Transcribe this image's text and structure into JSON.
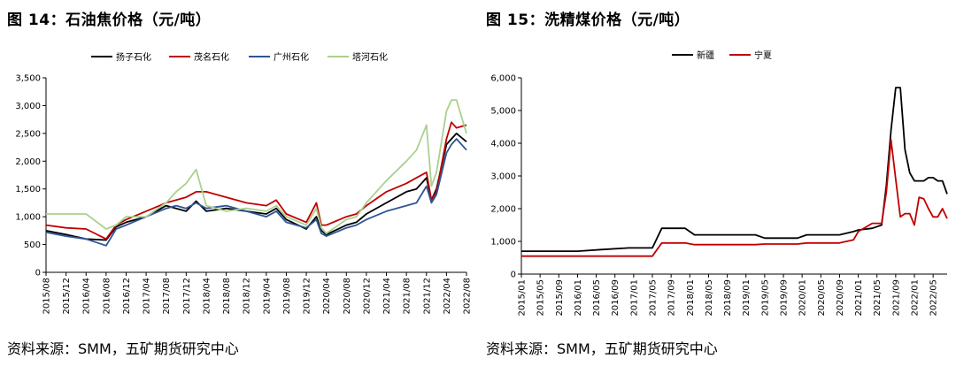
{
  "left": {
    "title": "图 14：石油焦价格（元/吨）",
    "source": "资料来源：SMM，五矿期货研究中心",
    "chart_data": {
      "type": "line",
      "title": "",
      "xlabel": "",
      "ylabel": "",
      "ylim": [
        0,
        3500
      ],
      "yticks": [
        0,
        500,
        1000,
        1500,
        2000,
        2500,
        3000,
        3500
      ],
      "ytick_labels": [
        "0",
        "500",
        "1,000",
        "1,500",
        "2,000",
        "2,500",
        "3,000",
        "3,500"
      ],
      "xticks": [
        "2015/08",
        "2015/12",
        "2016/04",
        "2016/08",
        "2016/12",
        "2017/04",
        "2017/08",
        "2017/12",
        "2018/04",
        "2018/08",
        "2018/12",
        "2019/04",
        "2019/08",
        "2019/12",
        "2020/04",
        "2020/08",
        "2020/12",
        "2021/04",
        "2021/08",
        "2021/12",
        "2022/04",
        "2022/08"
      ],
      "x": [
        "2015/08",
        "2015/12",
        "2016/04",
        "2016/08",
        "2016/10",
        "2016/12",
        "2017/04",
        "2017/08",
        "2017/10",
        "2017/12",
        "2018/02",
        "2018/04",
        "2018/08",
        "2018/12",
        "2019/04",
        "2019/06",
        "2019/08",
        "2019/12",
        "2020/02",
        "2020/03",
        "2020/04",
        "2020/08",
        "2020/10",
        "2020/12",
        "2021/04",
        "2021/08",
        "2021/10",
        "2021/12",
        "2022/01",
        "2022/02",
        "2022/04",
        "2022/05",
        "2022/06",
        "2022/08"
      ],
      "legend_position": "top",
      "grid": false,
      "series": [
        {
          "name": "扬子石化",
          "color": "#000000",
          "values": [
            750,
            680,
            600,
            580,
            820,
            900,
            1000,
            1200,
            1150,
            1100,
            1280,
            1100,
            1150,
            1100,
            1050,
            1150,
            950,
            780,
            1000,
            750,
            680,
            850,
            900,
            1050,
            1250,
            1450,
            1500,
            1700,
            1300,
            1500,
            2300,
            2400,
            2500,
            2350
          ]
        },
        {
          "name": "茂名石化",
          "color": "#C00000",
          "values": [
            850,
            800,
            780,
            600,
            850,
            950,
            1100,
            1250,
            1300,
            1350,
            1450,
            1450,
            1350,
            1250,
            1200,
            1300,
            1050,
            900,
            1250,
            850,
            850,
            1000,
            1050,
            1200,
            1450,
            1600,
            1700,
            1800,
            1300,
            1450,
            2400,
            2700,
            2600,
            2650
          ]
        },
        {
          "name": "广州石化",
          "color": "#2F5597",
          "values": [
            720,
            650,
            600,
            480,
            780,
            850,
            1000,
            1150,
            1200,
            1150,
            1250,
            1150,
            1200,
            1100,
            1000,
            1100,
            900,
            800,
            950,
            700,
            650,
            800,
            850,
            950,
            1100,
            1200,
            1250,
            1550,
            1250,
            1400,
            2150,
            2300,
            2400,
            2200
          ]
        },
        {
          "name": "塔河石化",
          "color": "#A9D18E",
          "values": [
            1050,
            1050,
            1050,
            780,
            850,
            1000,
            1000,
            1250,
            1450,
            1600,
            1850,
            1200,
            1100,
            1150,
            1100,
            1200,
            1000,
            850,
            1150,
            800,
            700,
            950,
            1000,
            1250,
            1650,
            2000,
            2200,
            2650,
            1550,
            1800,
            2900,
            3100,
            3100,
            2500
          ]
        }
      ]
    }
  },
  "right": {
    "title": "图 15：洗精煤价格（元/吨）",
    "source": "资料来源：SMM，五矿期货研究中心",
    "chart_data": {
      "type": "line",
      "title": "",
      "xlabel": "",
      "ylabel": "",
      "ylim": [
        0,
        6000
      ],
      "yticks": [
        0,
        1000,
        2000,
        3000,
        4000,
        5000,
        6000
      ],
      "ytick_labels": [
        "0",
        "1,000",
        "2,000",
        "3,000",
        "4,000",
        "5,000",
        "6,000"
      ],
      "xticks": [
        "2015/01",
        "2015/05",
        "2015/09",
        "2016/01",
        "2016/05",
        "2016/09",
        "2017/01",
        "2017/05",
        "2017/09",
        "2018/01",
        "2018/05",
        "2018/09",
        "2019/01",
        "2019/05",
        "2019/09",
        "2020/01",
        "2020/05",
        "2020/09",
        "2021/01",
        "2021/05",
        "2021/09",
        "2022/01",
        "2022/05"
      ],
      "x": [
        "2015/01",
        "2016/01",
        "2016/06",
        "2016/12",
        "2017/05",
        "2017/07",
        "2017/09",
        "2017/12",
        "2018/02",
        "2019/03",
        "2019/05",
        "2019/12",
        "2020/02",
        "2020/09",
        "2020/12",
        "2021/01",
        "2021/04",
        "2021/06",
        "2021/07",
        "2021/08",
        "2021/09",
        "2021/10",
        "2021/11",
        "2021/12",
        "2022/01",
        "2022/02",
        "2022/03",
        "2022/04",
        "2022/05",
        "2022/06",
        "2022/07",
        "2022/08"
      ],
      "legend_position": "top",
      "grid": false,
      "series": [
        {
          "name": "新疆",
          "color": "#000000",
          "values": [
            700,
            700,
            750,
            800,
            800,
            1400,
            1400,
            1400,
            1200,
            1200,
            1100,
            1100,
            1200,
            1200,
            1300,
            1350,
            1400,
            1500,
            2700,
            4400,
            5700,
            5700,
            3800,
            3100,
            2850,
            2850,
            2850,
            2950,
            2950,
            2850,
            2850,
            2450
          ]
        },
        {
          "name": "宁夏",
          "color": "#C00000",
          "values": [
            550,
            550,
            550,
            550,
            550,
            950,
            950,
            950,
            900,
            900,
            920,
            920,
            950,
            950,
            1050,
            1300,
            1550,
            1550,
            2500,
            4100,
            2900,
            1750,
            1850,
            1850,
            1500,
            2350,
            2300,
            2000,
            1750,
            1750,
            2000,
            1700
          ]
        }
      ]
    }
  }
}
